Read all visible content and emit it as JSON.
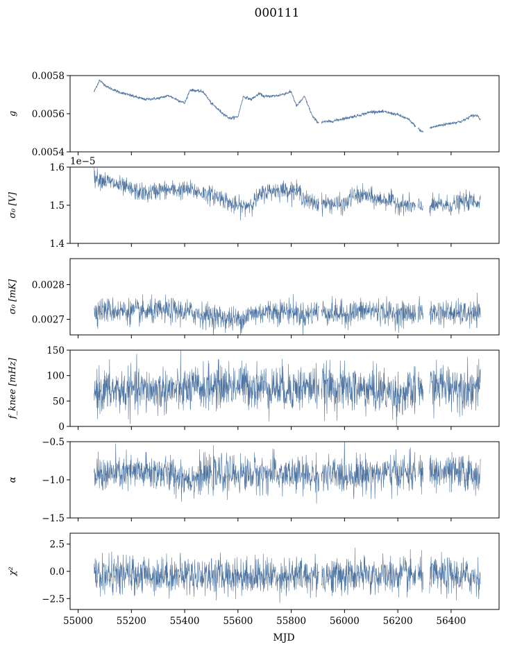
{
  "title": "000111",
  "xlabel": "MJD",
  "colors": {
    "series": "#4c72a0",
    "axis": "#000000",
    "background": "#ffffff"
  },
  "chart_data": [
    {
      "type": "line",
      "panel": "g",
      "ylabel": "g",
      "offset_text": "",
      "xlim": [
        54970,
        56580
      ],
      "ylim": [
        0.0054,
        0.0058
      ],
      "yticks": [
        0.0054,
        0.0056,
        0.0058
      ],
      "yticklabels": [
        "0.0054",
        "0.0056",
        "0.0058"
      ],
      "show_xticklabels": false,
      "noise": 6e-06,
      "x": [
        55060,
        55080,
        55110,
        55150,
        55200,
        55250,
        55300,
        55340,
        55400,
        55420,
        55470,
        55500,
        55540,
        55570,
        55600,
        55620,
        55650,
        55680,
        55700,
        55750,
        55800,
        55820,
        55850,
        55880,
        55900,
        55950,
        56000,
        56050,
        56100,
        56150,
        56200,
        56240,
        56270,
        56290,
        56320,
        56360,
        56400,
        56440,
        56480,
        56500,
        56510
      ],
      "y": [
        0.005715,
        0.005775,
        0.00574,
        0.005715,
        0.005695,
        0.005675,
        0.00568,
        0.005695,
        0.005655,
        0.005725,
        0.005715,
        0.005655,
        0.005605,
        0.005575,
        0.005585,
        0.00569,
        0.005675,
        0.005705,
        0.00569,
        0.005695,
        0.005715,
        0.00564,
        0.00569,
        0.005585,
        0.005555,
        0.00556,
        0.005575,
        0.00559,
        0.00561,
        0.00561,
        0.005595,
        0.00557,
        0.00553,
        0.005505,
        0.005525,
        0.00554,
        0.00555,
        0.00556,
        0.00559,
        0.00559,
        0.00557
      ]
    },
    {
      "type": "line",
      "panel": "sigma0_V",
      "ylabel": "σ₀ [V]",
      "offset_text": "1e−5",
      "xlim": [
        54970,
        56580
      ],
      "ylim": [
        1.4,
        1.6
      ],
      "yticks": [
        1.4,
        1.5,
        1.6
      ],
      "yticklabels": [
        "1.4",
        "1.5",
        "1.6"
      ],
      "show_xticklabels": false,
      "noise": 0.012,
      "x": [
        55060,
        55120,
        55200,
        55260,
        55300,
        55350,
        55420,
        55480,
        55540,
        55580,
        55620,
        55660,
        55700,
        55750,
        55800,
        55830,
        55860,
        55900,
        55950,
        56000,
        56030,
        56080,
        56120,
        56160,
        56200,
        56240,
        56270,
        56300,
        56350,
        56400,
        56450,
        56510
      ],
      "y": [
        1.575,
        1.56,
        1.54,
        1.53,
        1.54,
        1.54,
        1.54,
        1.53,
        1.52,
        1.5,
        1.495,
        1.51,
        1.535,
        1.54,
        1.54,
        1.535,
        1.51,
        1.505,
        1.505,
        1.5,
        1.525,
        1.525,
        1.515,
        1.515,
        1.505,
        1.5,
        1.495,
        1.495,
        1.5,
        1.5,
        1.51,
        1.51
      ]
    },
    {
      "type": "line",
      "panel": "sigma0_mK",
      "ylabel": "σ₀ [mK]",
      "offset_text": "",
      "xlim": [
        54970,
        56580
      ],
      "ylim": [
        0.002655,
        0.002875
      ],
      "yticks": [
        0.0027,
        0.0028
      ],
      "yticklabels": [
        "0.0027",
        "0.0028"
      ],
      "show_xticklabels": false,
      "noise": 1.8e-05,
      "x": [
        55060,
        55150,
        55250,
        55350,
        55420,
        55480,
        55540,
        55600,
        55650,
        55700,
        55800,
        55850,
        55900,
        55950,
        56000,
        56050,
        56100,
        56150,
        56200,
        56250,
        56300,
        56350,
        56400,
        56450,
        56510
      ],
      "y": [
        0.002727,
        0.002725,
        0.00272,
        0.002725,
        0.00272,
        0.002712,
        0.002705,
        0.002698,
        0.002715,
        0.002722,
        0.002724,
        0.00271,
        0.002725,
        0.002718,
        0.002715,
        0.002722,
        0.002726,
        0.00272,
        0.002715,
        0.002718,
        0.002718,
        0.00272,
        0.002718,
        0.002715,
        0.002712
      ]
    },
    {
      "type": "line",
      "panel": "fknee",
      "ylabel": "f_knee [mHz]",
      "offset_text": "",
      "xlim": [
        54970,
        56580
      ],
      "ylim": [
        0,
        150
      ],
      "yticks": [
        0,
        50,
        100,
        150
      ],
      "yticklabels": [
        "0",
        "50",
        "100",
        "150"
      ],
      "show_xticklabels": false,
      "noise": 22,
      "x": [
        55060,
        55200,
        55400,
        55500,
        55600,
        55700,
        55800,
        55900,
        56000,
        56150,
        56200,
        56250,
        56300,
        56400,
        56510
      ],
      "y": [
        70,
        70,
        72,
        78,
        82,
        78,
        75,
        78,
        75,
        70,
        62,
        65,
        78,
        80,
        75
      ]
    },
    {
      "type": "line",
      "panel": "alpha",
      "ylabel": "α",
      "offset_text": "",
      "xlim": [
        54970,
        56580
      ],
      "ylim": [
        -1.5,
        -0.5
      ],
      "yticks": [
        -1.5,
        -1.0,
        -0.5
      ],
      "yticklabels": [
        "−1.5",
        "−1.0",
        "−0.5"
      ],
      "show_xticklabels": false,
      "noise": 0.12,
      "x": [
        55060,
        55300,
        55420,
        55500,
        55700,
        55900,
        56100,
        56300,
        56510
      ],
      "y": [
        -0.93,
        -0.9,
        -0.98,
        -0.93,
        -0.92,
        -0.95,
        -0.92,
        -0.9,
        -0.92
      ]
    },
    {
      "type": "line",
      "panel": "chi2",
      "ylabel": "χ²",
      "offset_text": "",
      "xlim": [
        54970,
        56580
      ],
      "ylim": [
        -3.5,
        3.5
      ],
      "yticks": [
        -2.5,
        0.0,
        2.5
      ],
      "yticklabels": [
        "−2.5",
        "0.0",
        "2.5"
      ],
      "show_xticklabels": true,
      "noise": 0.85,
      "x": [
        55060,
        55300,
        55600,
        55900,
        56200,
        56510
      ],
      "y": [
        -0.4,
        -0.3,
        -0.4,
        -0.4,
        -0.4,
        -0.5
      ]
    }
  ],
  "xticks": [
    55000,
    55200,
    55400,
    55600,
    55800,
    56000,
    56200,
    56400
  ],
  "xticklabels": [
    "55000",
    "55200",
    "55400",
    "55600",
    "55800",
    "56000",
    "56200",
    "56400"
  ],
  "gaps": [
    [
      55905,
      55912
    ],
    [
      56268,
      56275
    ],
    [
      56296,
      56318
    ]
  ]
}
